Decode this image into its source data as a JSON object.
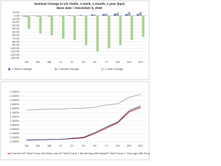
{
  "chart_data": [
    {
      "type": "bar",
      "title": "Nominal Change in US Yields, 1-week, 1-month, 1-year (bps)",
      "subtitle": "Base date = December 6, 2019",
      "categories": [
        "1M",
        "3M",
        "6M",
        "1Y",
        "2Y",
        "3Y",
        "5Y",
        "7Y",
        "10Y",
        "20Y",
        "30Y"
      ],
      "series": [
        {
          "name": "1-Week Change",
          "color": "#4472c4",
          "values": [
            -2,
            -1,
            -1,
            0,
            1,
            2,
            4,
            5,
            6,
            5,
            5
          ]
        },
        {
          "name": "1-Month Change",
          "color": "#a5a5a5",
          "values": [
            -4,
            -3,
            -3,
            -2,
            -2,
            -1,
            3,
            6,
            9,
            11,
            11
          ]
        },
        {
          "name": "1-Year Change",
          "color": "#a9d18e",
          "values": [
            -40,
            -55,
            -60,
            -70,
            -75,
            -90,
            -110,
            -100,
            -90,
            -75,
            -65
          ]
        }
      ],
      "ylim": [
        -130,
        10
      ],
      "yticks": [
        {
          "value": 10,
          "label": "10.00"
        },
        {
          "value": 0,
          "label": "0.00"
        },
        {
          "value": -10,
          "label": "-10.00"
        },
        {
          "value": -20,
          "label": "-20.00"
        },
        {
          "value": -30,
          "label": "-30.00"
        },
        {
          "value": -40,
          "label": "-40.00"
        },
        {
          "value": -50,
          "label": "-50.00"
        },
        {
          "value": -60,
          "label": "-60.00"
        },
        {
          "value": -70,
          "label": "-70.00"
        },
        {
          "value": -80,
          "label": "-80.00"
        },
        {
          "value": -90,
          "label": "-90.00"
        },
        {
          "value": -100,
          "label": "-100.00"
        },
        {
          "value": -110,
          "label": "-110.00"
        },
        {
          "value": -120,
          "label": "-120.00"
        },
        {
          "value": -130,
          "label": "-130.00"
        }
      ],
      "grid": true
    },
    {
      "type": "line",
      "categories": [
        "1M",
        "3M",
        "6M",
        "1Y",
        "2Y",
        "3Y",
        "5Y",
        "7Y",
        "10Y",
        "20Y",
        "30Y"
      ],
      "series": [
        {
          "name": "Current US Yield Curve (3rd Dec)",
          "color": "#c00000",
          "values": [
            0.08,
            0.09,
            0.11,
            0.12,
            0.15,
            0.19,
            0.4,
            0.66,
            0.92,
            1.44,
            1.66
          ]
        },
        {
          "name": "US Yield Curve 1 Month Ago (6th Nov)",
          "color": "#2f55a4",
          "values": [
            0.09,
            0.1,
            0.11,
            0.12,
            0.17,
            0.22,
            0.45,
            0.72,
            0.96,
            1.51,
            1.73
          ]
        },
        {
          "name": "US Yield Curve 1 Year Ago (6th Dec)",
          "color": "#a5a5a5",
          "values": [
            1.52,
            1.55,
            1.57,
            1.57,
            1.61,
            1.62,
            1.67,
            1.77,
            1.84,
            2.14,
            2.29
          ]
        }
      ],
      "ylim": [
        0,
        2.4
      ],
      "yticks": [
        {
          "value": 2.4,
          "label": "2.400%"
        },
        {
          "value": 2.2,
          "label": "2.200%"
        },
        {
          "value": 2.0,
          "label": "2.000%"
        },
        {
          "value": 1.8,
          "label": "1.800%"
        },
        {
          "value": 1.6,
          "label": "1.600%"
        },
        {
          "value": 1.4,
          "label": "1.400%"
        },
        {
          "value": 1.2,
          "label": "1.200%"
        },
        {
          "value": 1.0,
          "label": "1.000%"
        },
        {
          "value": 0.8,
          "label": "0.800%"
        },
        {
          "value": 0.6,
          "label": "0.600%"
        },
        {
          "value": 0.4,
          "label": "0.400%"
        },
        {
          "value": 0.2,
          "label": "0.200%"
        },
        {
          "value": 0,
          "label": "0.000%"
        }
      ],
      "grid": true
    }
  ]
}
